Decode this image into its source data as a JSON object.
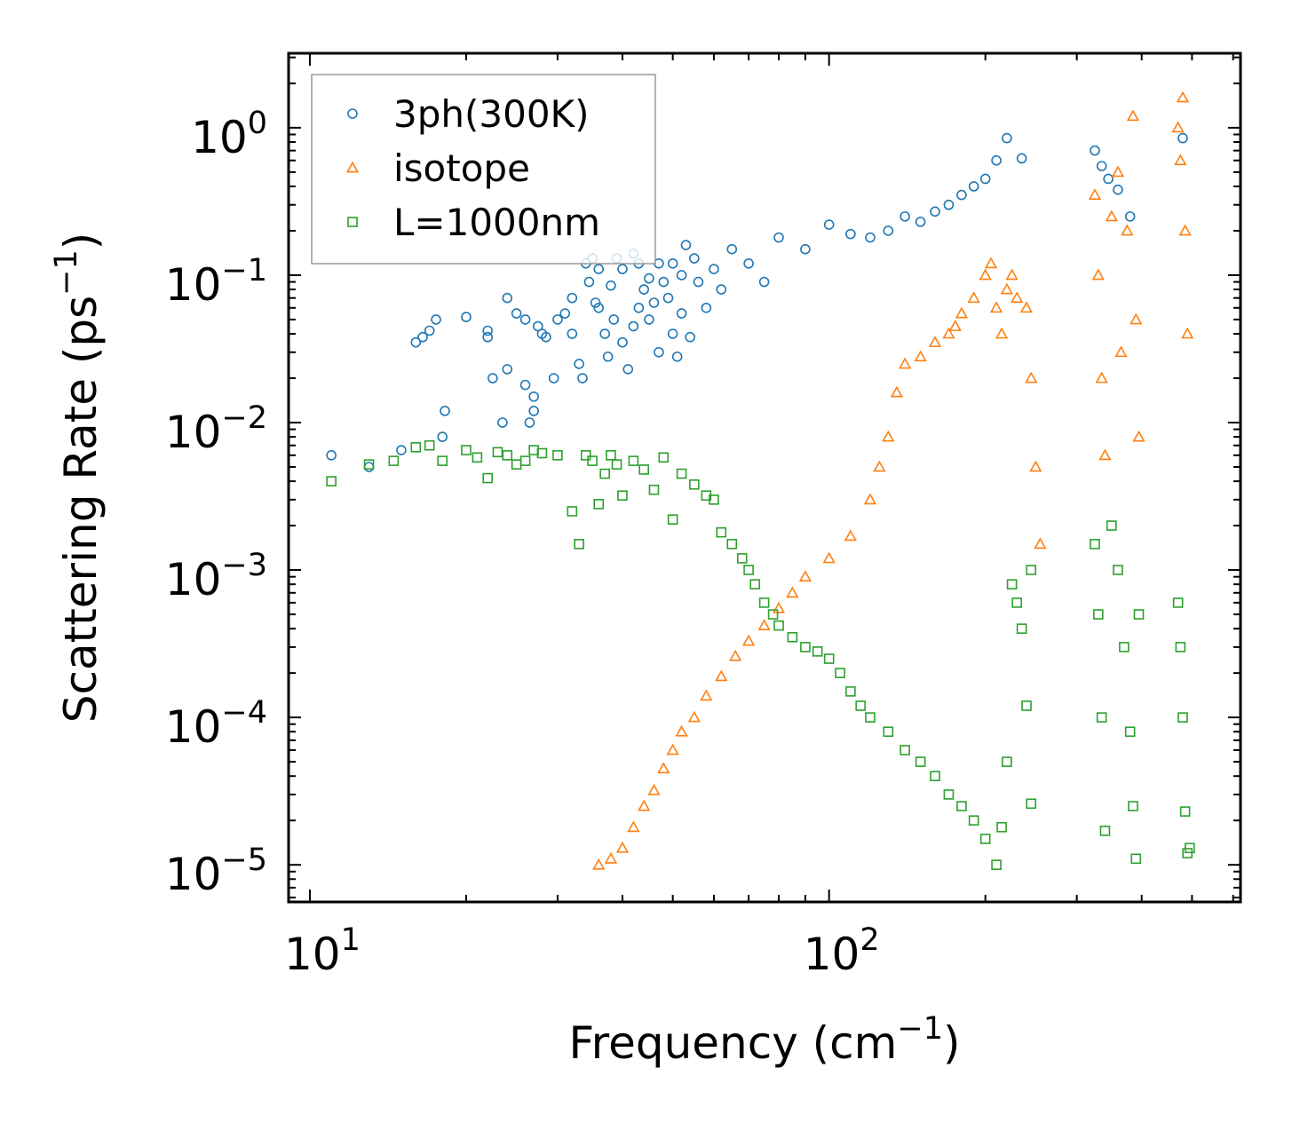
{
  "chart_data": {
    "type": "scatter",
    "xscale": "log",
    "yscale": "log",
    "xlim": [
      9.1,
      620
    ],
    "ylim": [
      5.6e-06,
      3.2
    ],
    "xlabel": {
      "text": "Frequency (cm",
      "sup": "−1",
      "suffix": ")"
    },
    "ylabel": {
      "text": "Scattering Rate (ps",
      "sup": "−1",
      "suffix": ")"
    },
    "xticks": [
      {
        "value": 10,
        "base": "10",
        "exp": "1"
      },
      {
        "value": 100,
        "base": "10",
        "exp": "2"
      }
    ],
    "yticks": [
      {
        "value": 1,
        "base": "10",
        "exp": "0"
      },
      {
        "value": 0.1,
        "base": "10",
        "exp": "−1"
      },
      {
        "value": 0.01,
        "base": "10",
        "exp": "−2"
      },
      {
        "value": 0.001,
        "base": "10",
        "exp": "−3"
      },
      {
        "value": 0.0001,
        "base": "10",
        "exp": "−4"
      },
      {
        "value": 1e-05,
        "base": "10",
        "exp": "−5"
      }
    ],
    "legend": {
      "placement": "top-left"
    },
    "series": [
      {
        "name": "3ph(300K)",
        "marker": "circle",
        "color": "#1f77b4",
        "points": [
          [
            11,
            0.006
          ],
          [
            13,
            0.005
          ],
          [
            15,
            0.0065
          ],
          [
            16,
            0.035
          ],
          [
            16.5,
            0.038
          ],
          [
            17,
            0.042
          ],
          [
            17.5,
            0.05
          ],
          [
            18,
            0.008
          ],
          [
            18.2,
            0.012
          ],
          [
            20,
            0.052
          ],
          [
            22,
            0.042
          ],
          [
            22,
            0.038
          ],
          [
            22.5,
            0.02
          ],
          [
            23.5,
            0.01
          ],
          [
            24,
            0.07
          ],
          [
            24,
            0.023
          ],
          [
            25,
            0.055
          ],
          [
            26,
            0.05
          ],
          [
            26,
            0.018
          ],
          [
            26.5,
            0.01
          ],
          [
            27,
            0.015
          ],
          [
            27,
            0.012
          ],
          [
            27.5,
            0.045
          ],
          [
            28,
            0.04
          ],
          [
            28.5,
            0.038
          ],
          [
            29.5,
            0.02
          ],
          [
            30,
            0.05
          ],
          [
            31,
            0.055
          ],
          [
            32,
            0.04
          ],
          [
            32,
            0.07
          ],
          [
            33,
            0.025
          ],
          [
            33.5,
            0.02
          ],
          [
            34,
            0.12
          ],
          [
            34.5,
            0.09
          ],
          [
            35,
            0.13
          ],
          [
            35.5,
            0.065
          ],
          [
            36,
            0.11
          ],
          [
            36,
            0.06
          ],
          [
            37,
            0.04
          ],
          [
            37.5,
            0.028
          ],
          [
            38,
            0.085
          ],
          [
            38.5,
            0.05
          ],
          [
            39,
            0.13
          ],
          [
            40,
            0.035
          ],
          [
            40,
            0.11
          ],
          [
            41,
            0.023
          ],
          [
            42,
            0.14
          ],
          [
            42,
            0.045
          ],
          [
            43,
            0.12
          ],
          [
            43,
            0.06
          ],
          [
            44,
            0.08
          ],
          [
            45,
            0.05
          ],
          [
            45,
            0.095
          ],
          [
            46,
            0.065
          ],
          [
            47,
            0.12
          ],
          [
            47,
            0.03
          ],
          [
            48,
            0.09
          ],
          [
            49,
            0.07
          ],
          [
            50,
            0.04
          ],
          [
            50,
            0.12
          ],
          [
            51,
            0.028
          ],
          [
            52,
            0.055
          ],
          [
            52,
            0.1
          ],
          [
            53,
            0.16
          ],
          [
            54,
            0.038
          ],
          [
            55,
            0.13
          ],
          [
            56,
            0.09
          ],
          [
            58,
            0.06
          ],
          [
            60,
            0.11
          ],
          [
            62,
            0.08
          ],
          [
            65,
            0.15
          ],
          [
            70,
            0.12
          ],
          [
            75,
            0.09
          ],
          [
            80,
            0.18
          ],
          [
            90,
            0.15
          ],
          [
            100,
            0.22
          ],
          [
            110,
            0.19
          ],
          [
            120,
            0.18
          ],
          [
            130,
            0.2
          ],
          [
            140,
            0.25
          ],
          [
            150,
            0.23
          ],
          [
            160,
            0.27
          ],
          [
            170,
            0.3
          ],
          [
            180,
            0.35
          ],
          [
            190,
            0.4
          ],
          [
            200,
            0.45
          ],
          [
            210,
            0.6
          ],
          [
            220,
            0.85
          ],
          [
            235,
            0.62
          ],
          [
            325,
            0.7
          ],
          [
            335,
            0.55
          ],
          [
            345,
            0.45
          ],
          [
            360,
            0.38
          ],
          [
            380,
            0.25
          ],
          [
            480,
            0.85
          ]
        ]
      },
      {
        "name": "isotope",
        "marker": "triangle",
        "color": "#ff7f0e",
        "points": [
          [
            36,
            1e-05
          ],
          [
            38,
            1.1e-05
          ],
          [
            40,
            1.3e-05
          ],
          [
            42,
            1.8e-05
          ],
          [
            44,
            2.5e-05
          ],
          [
            46,
            3.2e-05
          ],
          [
            48,
            4.5e-05
          ],
          [
            50,
            6e-05
          ],
          [
            52,
            8e-05
          ],
          [
            55,
            0.0001
          ],
          [
            58,
            0.00014
          ],
          [
            62,
            0.00019
          ],
          [
            66,
            0.00026
          ],
          [
            70,
            0.00033
          ],
          [
            75,
            0.00042
          ],
          [
            80,
            0.00055
          ],
          [
            85,
            0.0007
          ],
          [
            90,
            0.0009
          ],
          [
            100,
            0.0012
          ],
          [
            110,
            0.0017
          ],
          [
            120,
            0.003
          ],
          [
            125,
            0.005
          ],
          [
            130,
            0.008
          ],
          [
            135,
            0.016
          ],
          [
            140,
            0.025
          ],
          [
            150,
            0.028
          ],
          [
            160,
            0.035
          ],
          [
            170,
            0.04
          ],
          [
            175,
            0.045
          ],
          [
            180,
            0.055
          ],
          [
            190,
            0.07
          ],
          [
            200,
            0.1
          ],
          [
            205,
            0.12
          ],
          [
            210,
            0.06
          ],
          [
            215,
            0.04
          ],
          [
            220,
            0.08
          ],
          [
            225,
            0.1
          ],
          [
            230,
            0.07
          ],
          [
            240,
            0.06
          ],
          [
            245,
            0.02
          ],
          [
            250,
            0.005
          ],
          [
            255,
            0.0015
          ],
          [
            325,
            0.35
          ],
          [
            330,
            0.1
          ],
          [
            335,
            0.02
          ],
          [
            340,
            0.006
          ],
          [
            350,
            0.25
          ],
          [
            360,
            0.5
          ],
          [
            365,
            0.03
          ],
          [
            375,
            0.2
          ],
          [
            385,
            1.2
          ],
          [
            390,
            0.05
          ],
          [
            395,
            0.008
          ],
          [
            470,
            1.0
          ],
          [
            475,
            0.6
          ],
          [
            480,
            1.6
          ],
          [
            485,
            0.2
          ],
          [
            490,
            0.04
          ]
        ]
      },
      {
        "name": "L=1000nm",
        "marker": "square",
        "color": "#2ca02c",
        "points": [
          [
            11,
            0.004
          ],
          [
            13,
            0.0052
          ],
          [
            14.5,
            0.0055
          ],
          [
            16,
            0.0068
          ],
          [
            17,
            0.007
          ],
          [
            18,
            0.0055
          ],
          [
            20,
            0.0065
          ],
          [
            21,
            0.0058
          ],
          [
            22,
            0.0042
          ],
          [
            23,
            0.0063
          ],
          [
            24,
            0.006
          ],
          [
            25,
            0.0052
          ],
          [
            26,
            0.0055
          ],
          [
            27,
            0.0065
          ],
          [
            28,
            0.0062
          ],
          [
            30,
            0.006
          ],
          [
            32,
            0.0025
          ],
          [
            33,
            0.0015
          ],
          [
            34,
            0.006
          ],
          [
            35,
            0.0055
          ],
          [
            36,
            0.0028
          ],
          [
            37,
            0.0045
          ],
          [
            38,
            0.006
          ],
          [
            39,
            0.0052
          ],
          [
            40,
            0.0032
          ],
          [
            42,
            0.0055
          ],
          [
            44,
            0.0048
          ],
          [
            46,
            0.0035
          ],
          [
            48,
            0.0058
          ],
          [
            50,
            0.0022
          ],
          [
            52,
            0.0045
          ],
          [
            55,
            0.0038
          ],
          [
            58,
            0.0032
          ],
          [
            60,
            0.003
          ],
          [
            62,
            0.0018
          ],
          [
            65,
            0.0015
          ],
          [
            68,
            0.0012
          ],
          [
            70,
            0.001
          ],
          [
            72,
            0.0008
          ],
          [
            75,
            0.0006
          ],
          [
            78,
            0.0005
          ],
          [
            80,
            0.00042
          ],
          [
            85,
            0.00035
          ],
          [
            90,
            0.0003
          ],
          [
            95,
            0.00028
          ],
          [
            100,
            0.00025
          ],
          [
            105,
            0.0002
          ],
          [
            110,
            0.00015
          ],
          [
            115,
            0.00012
          ],
          [
            120,
            0.0001
          ],
          [
            130,
            8e-05
          ],
          [
            140,
            6e-05
          ],
          [
            150,
            5e-05
          ],
          [
            160,
            4e-05
          ],
          [
            170,
            3e-05
          ],
          [
            180,
            2.5e-05
          ],
          [
            190,
            2e-05
          ],
          [
            200,
            1.5e-05
          ],
          [
            210,
            1e-05
          ],
          [
            215,
            1.8e-05
          ],
          [
            220,
            5e-05
          ],
          [
            225,
            0.0008
          ],
          [
            230,
            0.0006
          ],
          [
            235,
            0.0004
          ],
          [
            240,
            0.00012
          ],
          [
            245,
            2.6e-05
          ],
          [
            245,
            0.001
          ],
          [
            325,
            0.0015
          ],
          [
            330,
            0.0005
          ],
          [
            335,
            0.0001
          ],
          [
            340,
            1.7e-05
          ],
          [
            350,
            0.002
          ],
          [
            360,
            0.001
          ],
          [
            370,
            0.0003
          ],
          [
            380,
            8e-05
          ],
          [
            385,
            2.5e-05
          ],
          [
            390,
            1.1e-05
          ],
          [
            395,
            0.0005
          ],
          [
            470,
            0.0006
          ],
          [
            475,
            0.0003
          ],
          [
            480,
            0.0001
          ],
          [
            485,
            2.3e-05
          ],
          [
            490,
            1.2e-05
          ],
          [
            495,
            1.3e-05
          ]
        ]
      }
    ]
  }
}
